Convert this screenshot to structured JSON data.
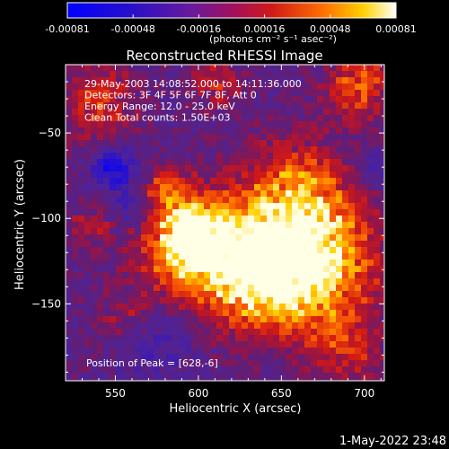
{
  "colorbar": {
    "ticks": [
      "-0.00081",
      "-0.00048",
      "-0.00016",
      "0.00016",
      "0.00048",
      "0.00081"
    ],
    "unit_label": "(photons cm⁻² s⁻¹ asec⁻²)"
  },
  "chart_data": {
    "type": "heatmap",
    "title": "Reconstructed RHESSI Image",
    "xlabel": "Heliocentric X (arcsec)",
    "ylabel": "Heliocentric Y (arcsec)",
    "xlim": [
      520,
      712
    ],
    "ylim": [
      -195,
      -10
    ],
    "xticks": [
      550,
      600,
      650,
      700
    ],
    "yticks": [
      -50,
      -100,
      -150
    ],
    "value_range": [
      -0.00081,
      0.00081
    ],
    "colormap": "blue-purple-red-yellow-white (RHESSI)",
    "annotations": [
      "29-May-2003 14:08:52.000 to 14:11:36.000",
      "Detectors: 3F 4F 5F 6F 7F 8F, Att 0",
      "Energy Range: 12.0 - 25.0 keV",
      "Clean     Total counts: 1.50E+03"
    ],
    "peak_label": "Position of Peak = [628,-6]",
    "peak": [
      628,
      -6
    ]
  },
  "timestamp": "1-May-2022 23:48"
}
